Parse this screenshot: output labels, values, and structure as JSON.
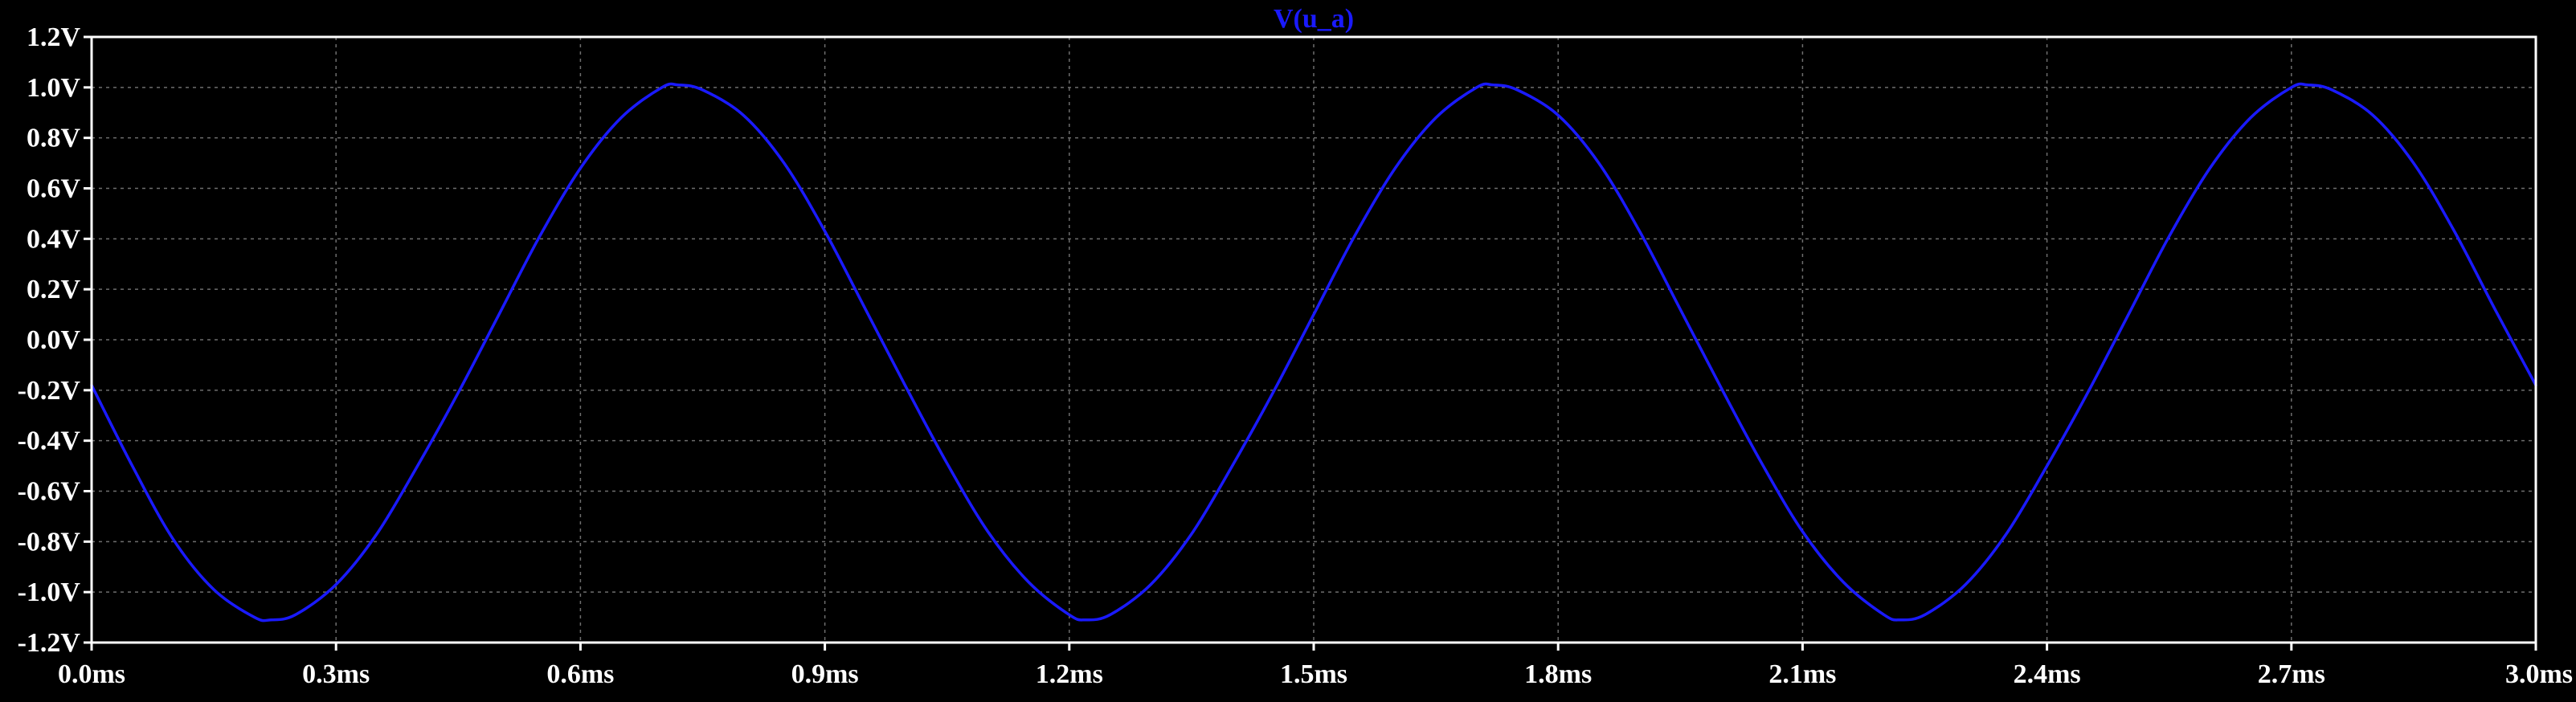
{
  "chart_data": {
    "type": "line",
    "title": "",
    "xlabel": "",
    "ylabel": "",
    "xlim": [
      0.0,
      3.0
    ],
    "ylim": [
      -1.2,
      1.2
    ],
    "x_ticks": [
      0.0,
      0.3,
      0.6,
      0.9,
      1.2,
      1.5,
      1.8,
      2.1,
      2.4,
      2.7,
      3.0
    ],
    "x_tick_labels": [
      "0.0ms",
      "0.3ms",
      "0.6ms",
      "0.9ms",
      "1.2ms",
      "1.5ms",
      "1.8ms",
      "2.1ms",
      "2.4ms",
      "2.7ms",
      "3.0ms"
    ],
    "y_ticks": [
      1.2,
      1.0,
      0.8,
      0.6,
      0.4,
      0.2,
      0.0,
      -0.2,
      -0.4,
      -0.6,
      -0.8,
      -1.0,
      -1.2
    ],
    "y_tick_labels": [
      "1.2V",
      "1.0V",
      "0.8V",
      "0.6V",
      "0.4V",
      "0.2V",
      "0.0V",
      "-0.2V",
      "-0.4V",
      "-0.6V",
      "-0.8V",
      "-1.0V",
      "-1.2V"
    ],
    "grid": true,
    "background": "#000000",
    "series": [
      {
        "name": "V(u_a)",
        "color": "#1a1aff",
        "x": [
          0.0,
          0.05,
          0.1,
          0.15,
          0.2,
          0.22,
          0.25,
          0.3,
          0.35,
          0.4,
          0.45,
          0.5,
          0.55,
          0.6,
          0.65,
          0.7,
          0.72,
          0.75,
          0.8,
          0.85,
          0.9,
          0.95,
          1.0,
          1.05,
          1.1,
          1.15,
          1.2,
          1.22,
          1.25,
          1.3,
          1.35,
          1.4,
          1.45,
          1.5,
          1.55,
          1.6,
          1.65,
          1.7,
          1.72,
          1.75,
          1.8,
          1.85,
          1.9,
          1.95,
          2.0,
          2.05,
          2.1,
          2.15,
          2.2,
          2.22,
          2.25,
          2.3,
          2.35,
          2.4,
          2.45,
          2.5,
          2.55,
          2.6,
          2.65,
          2.7,
          2.72,
          2.75,
          2.8,
          2.85,
          2.9,
          2.95,
          3.0
        ],
        "values": [
          -0.18,
          -0.5,
          -0.79,
          -0.99,
          -1.1,
          -1.11,
          -1.09,
          -0.97,
          -0.77,
          -0.5,
          -0.21,
          0.1,
          0.41,
          0.68,
          0.88,
          1.0,
          1.01,
          0.99,
          0.89,
          0.7,
          0.43,
          0.12,
          -0.19,
          -0.49,
          -0.76,
          -0.96,
          -1.09,
          -1.11,
          -1.09,
          -0.97,
          -0.77,
          -0.5,
          -0.21,
          0.1,
          0.41,
          0.68,
          0.88,
          1.0,
          1.01,
          0.99,
          0.89,
          0.7,
          0.43,
          0.12,
          -0.19,
          -0.49,
          -0.76,
          -0.96,
          -1.09,
          -1.11,
          -1.09,
          -0.97,
          -0.77,
          -0.5,
          -0.21,
          0.1,
          0.41,
          0.68,
          0.88,
          1.0,
          1.01,
          0.99,
          0.89,
          0.7,
          0.43,
          0.12,
          -0.18
        ]
      }
    ]
  },
  "colors": {
    "axis": "#ffffff",
    "grid": "#6e6e6e",
    "tick_text": "#ffffff"
  }
}
